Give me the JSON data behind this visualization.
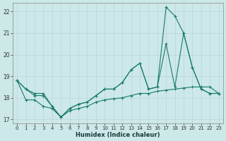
{
  "x": [
    0,
    1,
    2,
    3,
    4,
    5,
    6,
    7,
    8,
    9,
    10,
    11,
    12,
    13,
    14,
    15,
    16,
    17,
    18,
    19,
    20,
    21,
    22,
    23
  ],
  "line_wavy": [
    18.8,
    18.4,
    18.1,
    18.1,
    17.6,
    17.1,
    17.5,
    17.7,
    17.8,
    18.1,
    18.4,
    18.4,
    18.7,
    19.3,
    19.6,
    18.4,
    18.5,
    20.5,
    18.5,
    21.0,
    19.4,
    18.4,
    18.2,
    18.2
  ],
  "line_trend": [
    18.8,
    18.4,
    18.2,
    18.2,
    17.6,
    17.1,
    17.5,
    17.7,
    17.8,
    18.1,
    18.4,
    18.4,
    18.7,
    19.3,
    19.6,
    18.4,
    18.5,
    22.2,
    21.8,
    21.0,
    19.4,
    18.4,
    18.2,
    18.2
  ],
  "line_flat": [
    18.8,
    17.9,
    17.9,
    17.6,
    17.5,
    17.1,
    17.4,
    17.5,
    17.6,
    17.8,
    17.9,
    17.95,
    18.0,
    18.1,
    18.2,
    18.2,
    18.3,
    18.35,
    18.4,
    18.45,
    18.5,
    18.5,
    18.5,
    18.2
  ],
  "color": "#1a7a6a",
  "bg_color": "#cce8e8",
  "grid_color": "#b8d4d4",
  "xlabel": "Humidex (Indice chaleur)",
  "ylim": [
    16.8,
    22.4
  ],
  "xlim": [
    -0.5,
    23.5
  ],
  "yticks": [
    17,
    18,
    19,
    20,
    21,
    22
  ],
  "xticks": [
    0,
    1,
    2,
    3,
    4,
    5,
    6,
    7,
    8,
    9,
    10,
    11,
    12,
    13,
    14,
    15,
    16,
    17,
    18,
    19,
    20,
    21,
    22,
    23
  ]
}
